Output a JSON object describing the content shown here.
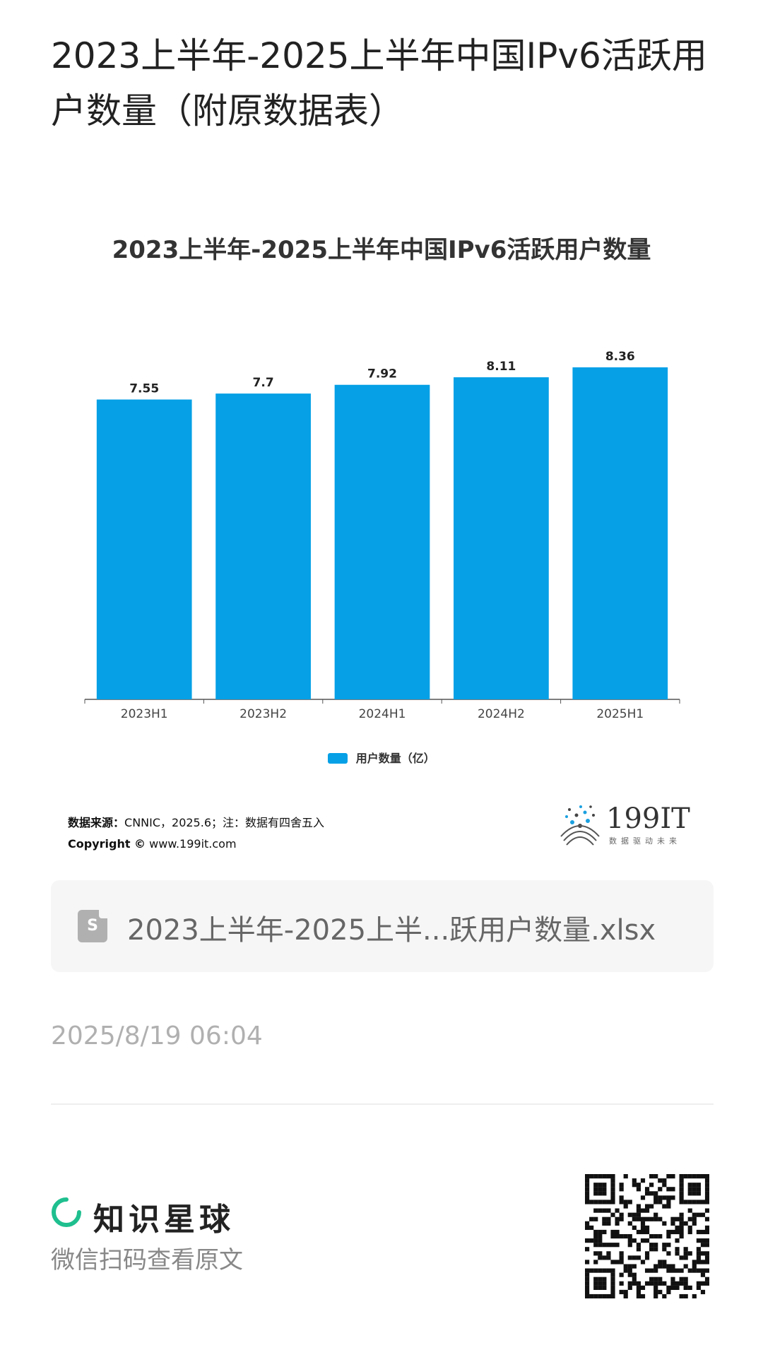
{
  "post": {
    "title": "2023上半年-2025上半年中国IPv6活跃用户数量（附原数据表）",
    "timestamp": "2025/8/19 06:04"
  },
  "chart_data": {
    "type": "bar",
    "title": "2023上半年-2025上半年中国IPv6活跃用户数量",
    "categories": [
      "2023H1",
      "2023H2",
      "2024H1",
      "2024H2",
      "2025H1"
    ],
    "series": [
      {
        "name": "用户数量（亿）",
        "values": [
          7.55,
          7.7,
          7.92,
          8.11,
          8.36
        ]
      }
    ],
    "data_labels": [
      "7.55",
      "7.7",
      "7.92",
      "8.11",
      "8.36"
    ],
    "ylim": [
      0,
      9
    ],
    "grid": false,
    "legend_position": "bottom",
    "bar_color": "#05a0e6"
  },
  "source": {
    "label": "数据来源：",
    "text": "CNNIC，2025.6；注：数据有四舍五入",
    "copyright_label": "Copyright ©",
    "copyright_url": "www.199it.com"
  },
  "logo": {
    "text": "199IT",
    "tagline": "数据驱动未来"
  },
  "file": {
    "icon": "spreadsheet-file-icon",
    "icon_letter": "S",
    "name": "2023上半年-2025上半...跃用户数量.xlsx"
  },
  "brand": {
    "name": "知识星球",
    "subtitle": "微信扫码查看原文",
    "accent": "#1fbf8f"
  }
}
